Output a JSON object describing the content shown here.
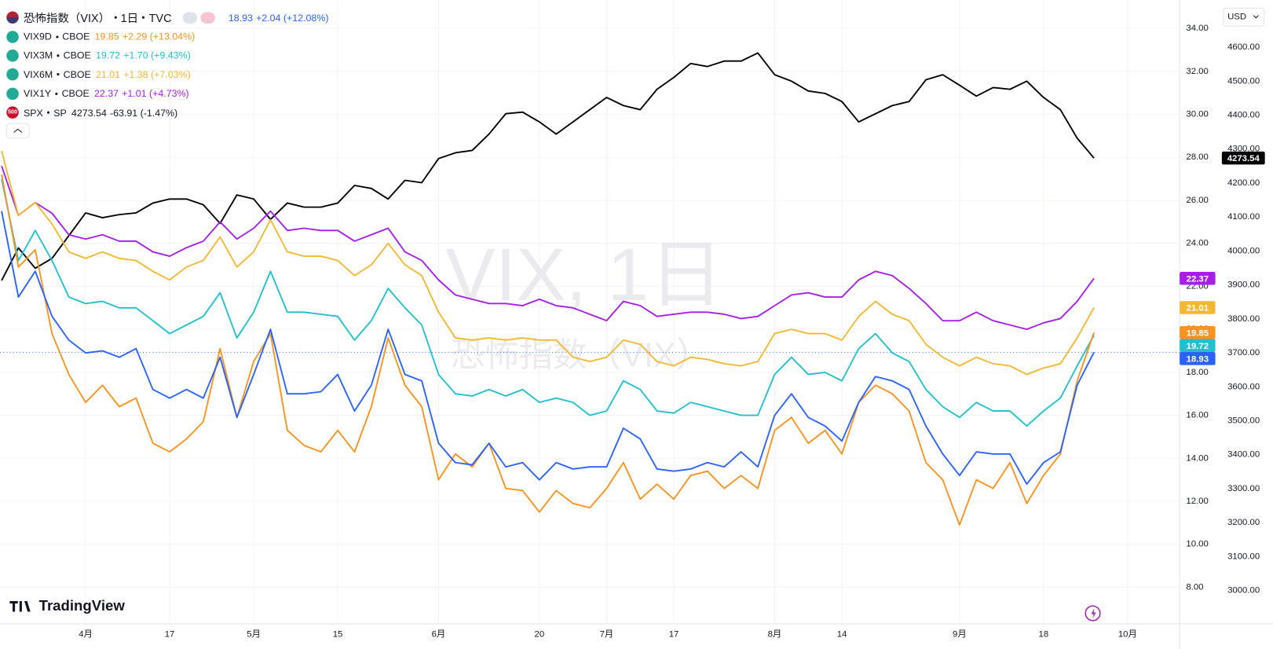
{
  "chart_data": {
    "type": "line",
    "interval": "1日",
    "currency": "USD",
    "brand": "TradingView",
    "watermark": {
      "symbol": "VIX, 1日",
      "description": "恐怖指数（VIX）"
    },
    "categories": [
      null,
      null,
      null,
      null,
      null,
      "4月",
      null,
      null,
      null,
      null,
      "17",
      null,
      null,
      null,
      null,
      "5月",
      null,
      null,
      null,
      null,
      "15",
      null,
      null,
      null,
      null,
      null,
      "6月",
      null,
      null,
      null,
      null,
      null,
      "20",
      null,
      null,
      null,
      "7月",
      null,
      null,
      null,
      "17",
      null,
      null,
      null,
      null,
      null,
      "8月",
      null,
      null,
      null,
      "14",
      null,
      null,
      null,
      null,
      null,
      null,
      "9月",
      null,
      null,
      null,
      null,
      "18",
      null,
      null,
      null,
      null,
      "10月"
    ],
    "ylim": [
      6.3,
      35.13
    ],
    "yticks": [
      {
        "value": 8,
        "label": "8.00"
      },
      {
        "value": 10,
        "label": "10.00"
      },
      {
        "value": 12,
        "label": "12.00"
      },
      {
        "value": 14,
        "label": "14.00"
      },
      {
        "value": 16,
        "label": "16.00"
      },
      {
        "value": 18,
        "label": "18.00"
      },
      {
        "value": 20,
        "label": "20.00"
      },
      {
        "value": 22,
        "label": "22.00"
      },
      {
        "value": 24,
        "label": "24.00"
      },
      {
        "value": 26,
        "label": "26.00"
      },
      {
        "value": 28,
        "label": "28.00"
      },
      {
        "value": 30,
        "label": "30.00"
      },
      {
        "value": 32,
        "label": "32.00"
      },
      {
        "value": 34,
        "label": "34.00"
      }
    ],
    "y2lim": [
      2902,
      4727
    ],
    "y2ticks": [
      {
        "value": 3000,
        "label": "3000.00"
      },
      {
        "value": 3100,
        "label": "3100.00"
      },
      {
        "value": 3200,
        "label": "3200.00"
      },
      {
        "value": 3300,
        "label": "3300.00"
      },
      {
        "value": 3400,
        "label": "3400.00"
      },
      {
        "value": 3500,
        "label": "3500.00"
      },
      {
        "value": 3600,
        "label": "3600.00"
      },
      {
        "value": 3700,
        "label": "3700.00"
      },
      {
        "value": 3800,
        "label": "3800.00"
      },
      {
        "value": 3900,
        "label": "3900.00"
      },
      {
        "value": 4000,
        "label": "4000.00"
      },
      {
        "value": 4100,
        "label": "4100.00"
      },
      {
        "value": 4200,
        "label": "4200.00"
      },
      {
        "value": 4300,
        "label": "4300.00"
      },
      {
        "value": 4400,
        "label": "4400.00"
      },
      {
        "value": 4500,
        "label": "4500.00"
      },
      {
        "value": 4600,
        "label": "4600.00"
      }
    ],
    "grid": true,
    "series": [
      {
        "name": "恐怖指数（VIX）",
        "source": "TVC",
        "color": "#2962ff",
        "change": "+2.04 (+12.08%)",
        "values": [
          25.5,
          21.5,
          22.7,
          20.6,
          19.5,
          18.9,
          19.0,
          18.7,
          19.1,
          17.2,
          16.8,
          17.2,
          16.8,
          18.7,
          15.9,
          17.9,
          20.0,
          17.0,
          17.0,
          17.1,
          17.9,
          16.2,
          17.4,
          20.0,
          17.9,
          17.6,
          14.7,
          13.8,
          13.7,
          14.7,
          13.6,
          13.8,
          13.0,
          13.8,
          13.5,
          13.6,
          13.6,
          15.4,
          14.9,
          13.5,
          13.4,
          13.5,
          13.8,
          13.6,
          14.3,
          13.6,
          16.0,
          17.0,
          15.9,
          15.5,
          14.8,
          16.6,
          17.8,
          17.6,
          17.2,
          15.5,
          14.2,
          13.2,
          14.3,
          14.2,
          14.2,
          12.8,
          13.8,
          14.3,
          17.4,
          18.93,
          null,
          null
        ]
      },
      {
        "name": "VIX9D",
        "source": "CBOE",
        "color": "#f7931e",
        "change": "+2.29 (+13.04%)",
        "values": [
          27.2,
          22.9,
          23.7,
          19.8,
          17.9,
          16.6,
          17.4,
          16.4,
          16.8,
          14.7,
          14.3,
          14.9,
          15.7,
          19.1,
          15.9,
          18.5,
          19.8,
          15.3,
          14.6,
          14.3,
          15.3,
          14.3,
          16.4,
          19.6,
          17.4,
          16.4,
          13.0,
          14.2,
          13.6,
          14.7,
          12.6,
          12.5,
          11.5,
          12.5,
          11.9,
          11.7,
          12.6,
          13.8,
          12.1,
          12.8,
          12.1,
          13.2,
          13.4,
          12.6,
          13.2,
          12.6,
          15.3,
          15.9,
          14.7,
          15.3,
          14.2,
          16.6,
          17.4,
          17.0,
          16.2,
          13.8,
          13.0,
          10.9,
          13.0,
          12.6,
          13.8,
          11.9,
          13.2,
          14.2,
          17.6,
          19.85,
          null,
          null
        ]
      },
      {
        "name": "VIX3M",
        "source": "CBOE",
        "color": "#22bfcf",
        "change": "+1.70 (+9.43%)",
        "values": [
          27.0,
          23.2,
          24.6,
          23.2,
          21.5,
          21.2,
          21.3,
          21.0,
          21.0,
          20.4,
          19.8,
          20.2,
          20.6,
          21.7,
          19.6,
          20.8,
          22.7,
          20.8,
          20.8,
          20.7,
          20.6,
          19.5,
          20.4,
          21.9,
          21.0,
          20.2,
          17.9,
          17.0,
          16.9,
          17.2,
          16.9,
          17.2,
          16.6,
          16.8,
          16.6,
          16.0,
          16.2,
          17.6,
          17.2,
          16.2,
          16.1,
          16.6,
          16.4,
          16.2,
          16.0,
          16.0,
          17.9,
          18.7,
          17.9,
          18.0,
          17.6,
          19.1,
          19.8,
          18.9,
          18.5,
          17.2,
          16.4,
          15.9,
          16.6,
          16.2,
          16.2,
          15.5,
          16.2,
          16.8,
          18.3,
          19.72,
          null,
          null
        ]
      },
      {
        "name": "VIX6M",
        "source": "CBOE",
        "color": "#f2b832",
        "change": "+1.38 (+7.03%)",
        "values": [
          28.3,
          25.3,
          25.9,
          24.9,
          23.6,
          23.3,
          23.6,
          23.3,
          23.2,
          22.7,
          22.3,
          22.9,
          23.2,
          24.3,
          22.9,
          23.6,
          25.1,
          23.6,
          23.4,
          23.4,
          23.2,
          22.5,
          23.0,
          24.0,
          23.0,
          22.5,
          20.8,
          19.6,
          19.5,
          19.6,
          19.5,
          19.6,
          19.5,
          19.5,
          18.7,
          18.5,
          18.7,
          19.5,
          19.3,
          18.5,
          18.3,
          18.7,
          18.6,
          18.4,
          18.3,
          18.5,
          19.8,
          20.0,
          19.8,
          19.8,
          19.5,
          20.6,
          21.3,
          20.7,
          20.4,
          19.3,
          18.7,
          18.3,
          18.7,
          18.4,
          18.3,
          17.9,
          18.2,
          18.4,
          19.6,
          21.01,
          null,
          null
        ]
      },
      {
        "name": "VIX1Y",
        "source": "CBOE",
        "color": "#a61ee8",
        "change": "+1.01 (+4.73%)",
        "values": [
          27.6,
          25.3,
          25.9,
          25.4,
          24.4,
          24.2,
          24.4,
          24.1,
          24.1,
          23.6,
          23.4,
          23.8,
          24.1,
          25.0,
          24.2,
          24.7,
          25.5,
          24.6,
          24.7,
          24.6,
          24.6,
          24.1,
          24.4,
          24.7,
          23.6,
          23.2,
          22.3,
          21.6,
          21.4,
          21.2,
          21.2,
          21.1,
          21.4,
          21.1,
          21.0,
          20.7,
          20.4,
          21.3,
          21.1,
          20.6,
          20.7,
          20.8,
          20.8,
          20.7,
          20.5,
          20.6,
          21.1,
          21.6,
          21.7,
          21.5,
          21.5,
          22.3,
          22.7,
          22.5,
          21.9,
          21.2,
          20.4,
          20.4,
          20.8,
          20.4,
          20.2,
          20.0,
          20.3,
          20.5,
          21.3,
          22.37,
          null,
          null
        ]
      },
      {
        "name": "SPX",
        "source": "SP",
        "icon": "500",
        "color": "#000000",
        "axis": "y2",
        "change": "-63.91 (-1.47%)",
        "values": [
          3913,
          4009,
          3949,
          3978,
          4045,
          4112,
          4098,
          4107,
          4112,
          4141,
          4153,
          4153,
          4136,
          4081,
          4165,
          4153,
          4093,
          4141,
          4129,
          4129,
          4141,
          4193,
          4184,
          4153,
          4208,
          4201,
          4272,
          4289,
          4296,
          4344,
          4404,
          4409,
          4380,
          4344,
          4380,
          4416,
          4452,
          4428,
          4416,
          4476,
          4511,
          4552,
          4543,
          4559,
          4559,
          4583,
          4519,
          4500,
          4471,
          4464,
          4440,
          4380,
          4404,
          4428,
          4440,
          4504,
          4519,
          4488,
          4456,
          4481,
          4476,
          4500,
          4452,
          4416,
          4332,
          4273.54,
          null,
          null
        ]
      }
    ]
  }
}
